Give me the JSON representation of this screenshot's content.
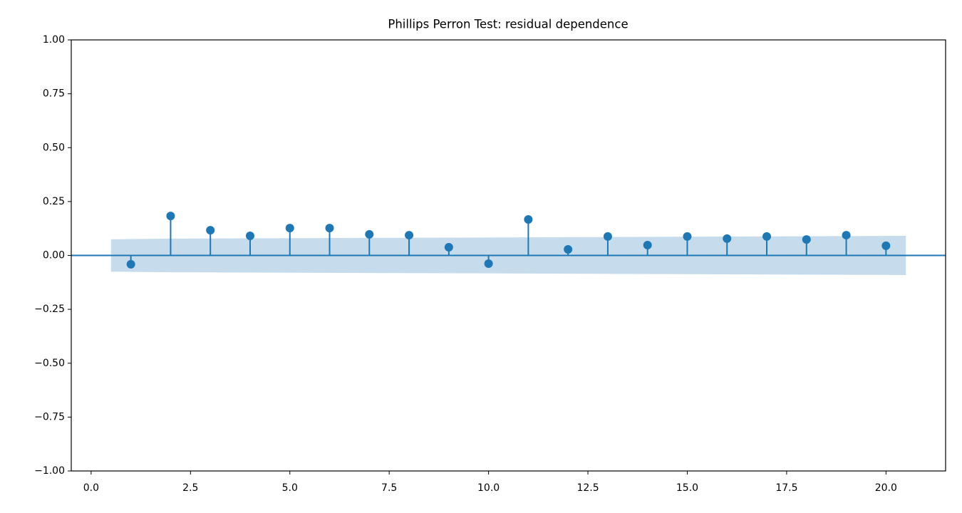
{
  "chart_data": {
    "type": "stem",
    "title": "Phillips Perron Test: residual dependence",
    "x": [
      1,
      2,
      3,
      4,
      5,
      6,
      7,
      8,
      9,
      10,
      11,
      12,
      13,
      14,
      15,
      16,
      17,
      18,
      19,
      20
    ],
    "values": [
      -0.041,
      0.183,
      0.117,
      0.091,
      0.127,
      0.127,
      0.098,
      0.094,
      0.038,
      -0.038,
      0.167,
      0.028,
      0.088,
      0.048,
      0.088,
      0.078,
      0.088,
      0.074,
      0.094,
      0.045
    ],
    "color": "#1f77b4",
    "band": {
      "x": [
        0.5,
        2,
        11,
        20.5
      ],
      "upper": [
        0.075,
        0.078,
        0.084,
        0.091
      ],
      "lower": [
        -0.075,
        -0.078,
        -0.084,
        -0.091
      ],
      "color": "#c6dcec"
    },
    "xlim": [
      -0.5,
      21.5
    ],
    "ylim": [
      -1,
      1
    ],
    "xticks": [
      {
        "value": 0,
        "label": "0.0"
      },
      {
        "value": 2.5,
        "label": "2.5"
      },
      {
        "value": 5,
        "label": "5.0"
      },
      {
        "value": 7.5,
        "label": "7.5"
      },
      {
        "value": 10,
        "label": "10.0"
      },
      {
        "value": 12.5,
        "label": "12.5"
      },
      {
        "value": 15,
        "label": "15.0"
      },
      {
        "value": 17.5,
        "label": "17.5"
      },
      {
        "value": 20,
        "label": "20.0"
      }
    ],
    "yticks": [
      {
        "value": -1,
        "label": "−1.00"
      },
      {
        "value": -0.75,
        "label": "−0.75"
      },
      {
        "value": -0.5,
        "label": "−0.50"
      },
      {
        "value": -0.25,
        "label": "−0.25"
      },
      {
        "value": 0,
        "label": "0.00"
      },
      {
        "value": 0.25,
        "label": "0.25"
      },
      {
        "value": 0.5,
        "label": "0.50"
      },
      {
        "value": 0.75,
        "label": "0.75"
      },
      {
        "value": 1,
        "label": "1.00"
      }
    ]
  }
}
